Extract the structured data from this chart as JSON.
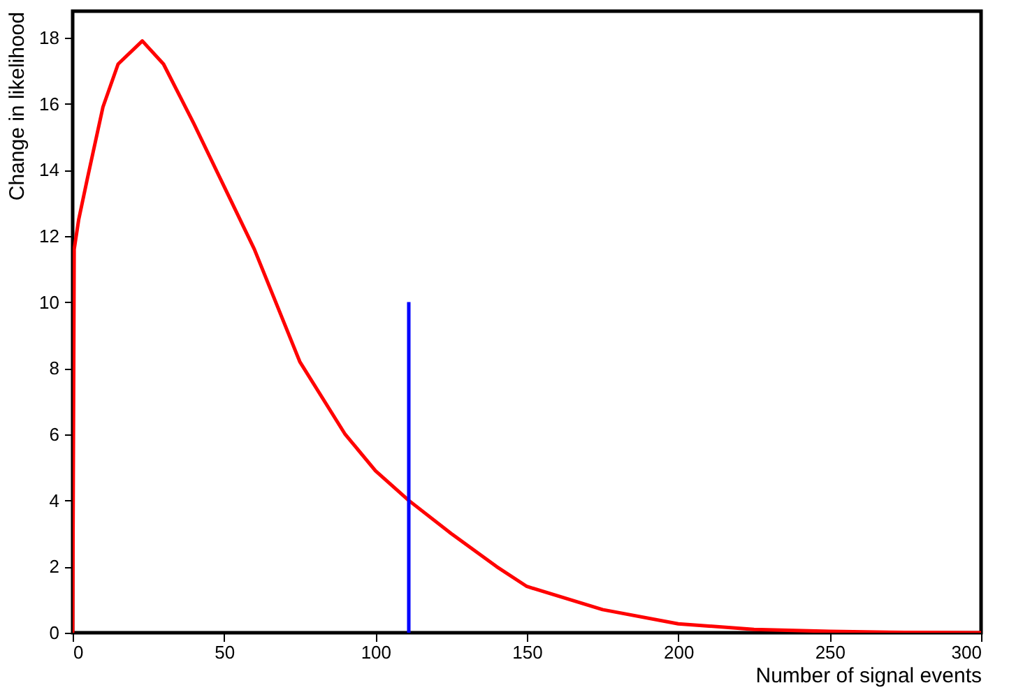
{
  "chart_data": {
    "type": "line",
    "xlabel": "Number of signal events",
    "ylabel": "Change in likelihood",
    "xlim": [
      0,
      300
    ],
    "xticks": [
      0,
      50,
      100,
      150,
      200,
      250,
      300
    ],
    "ylim": [
      0,
      18.8
    ],
    "yticks": [
      0,
      2,
      4,
      6,
      8,
      10,
      12,
      14,
      16,
      18
    ],
    "grid": false,
    "marker": "none",
    "line_style": "solid",
    "series": [
      {
        "color": "#ff0000",
        "x": [
          0,
          0.5,
          2,
          5,
          10,
          15,
          23,
          30,
          40,
          50,
          60,
          75,
          90,
          100,
          111,
          125,
          140,
          150,
          175,
          200,
          225,
          250,
          275,
          300
        ],
        "values": [
          0,
          11.6,
          12.5,
          13.8,
          15.9,
          17.2,
          17.9,
          17.2,
          15.4,
          13.5,
          11.6,
          8.2,
          6.0,
          4.9,
          4.0,
          3.0,
          2.0,
          1.4,
          0.7,
          0.27,
          0.1,
          0.04,
          0.01,
          0
        ]
      },
      {
        "color": "#0000ff",
        "x": [
          111,
          111
        ],
        "values": [
          0,
          10
        ]
      }
    ]
  }
}
